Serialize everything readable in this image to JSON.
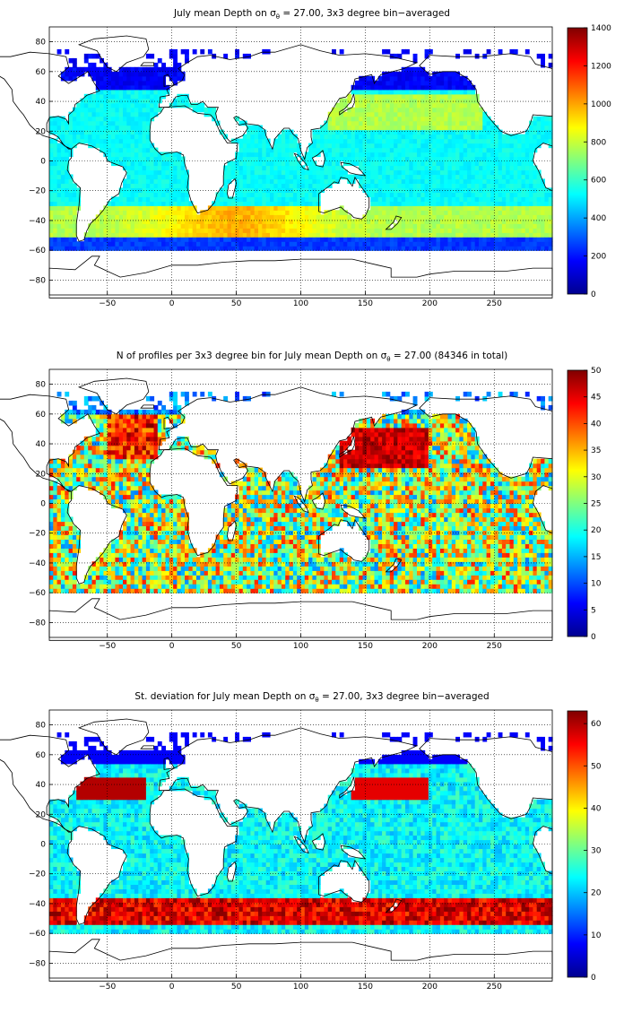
{
  "colors": {
    "colormap": "jet",
    "coastline": "#000000",
    "land": "#ffffff",
    "grid": "#000000"
  },
  "chart_data": [
    {
      "type": "heatmap",
      "title_prefix": "July mean Depth on ",
      "sigma_symbol": "σ",
      "sigma_subscript": "θ",
      "title_suffix": " = 27.00, 3x3 degree bin−averaged",
      "x_ticks": [
        "−50",
        "0",
        "50",
        "100",
        "150",
        "200",
        "250"
      ],
      "y_ticks": [
        "80",
        "60",
        "40",
        "20",
        "0",
        "−20",
        "−40",
        "−60",
        "−80"
      ],
      "xlim": [
        -95,
        295
      ],
      "ylim": [
        -90,
        90
      ],
      "colorbar_ticks": [
        "1400",
        "1200",
        "1000",
        "800",
        "600",
        "400",
        "200",
        "0"
      ],
      "clim": [
        0,
        1400
      ],
      "grid": "dotted",
      "bin_size_deg": 3
    },
    {
      "type": "heatmap",
      "title_prefix": "N of profiles per 3x3 degree bin for July mean Depth on ",
      "sigma_symbol": "σ",
      "sigma_subscript": "θ",
      "title_suffix": " = 27.00 (84346 in total)",
      "x_ticks": [
        "−50",
        "0",
        "50",
        "100",
        "150",
        "200",
        "250"
      ],
      "y_ticks": [
        "80",
        "60",
        "40",
        "20",
        "0",
        "−20",
        "−40",
        "−60",
        "−80"
      ],
      "xlim": [
        -95,
        295
      ],
      "ylim": [
        -90,
        90
      ],
      "colorbar_ticks": [
        "50",
        "45",
        "40",
        "35",
        "30",
        "25",
        "20",
        "15",
        "10",
        "5",
        "0"
      ],
      "clim": [
        0,
        50
      ],
      "grid": "dotted",
      "total_profiles": 84346
    },
    {
      "type": "heatmap",
      "title_prefix": "St. deviation for July mean Depth on ",
      "sigma_symbol": "σ",
      "sigma_subscript": "θ",
      "title_suffix": " = 27.00, 3x3 degree bin−averaged",
      "x_ticks": [
        "−50",
        "0",
        "50",
        "100",
        "150",
        "200",
        "250"
      ],
      "y_ticks": [
        "80",
        "60",
        "40",
        "20",
        "0",
        "−20",
        "−40",
        "−60",
        "−80"
      ],
      "xlim": [
        -95,
        295
      ],
      "ylim": [
        -90,
        90
      ],
      "colorbar_ticks": [
        "60",
        "50",
        "40",
        "30",
        "20",
        "10",
        "0"
      ],
      "clim": [
        0,
        63
      ],
      "grid": "dotted"
    }
  ]
}
